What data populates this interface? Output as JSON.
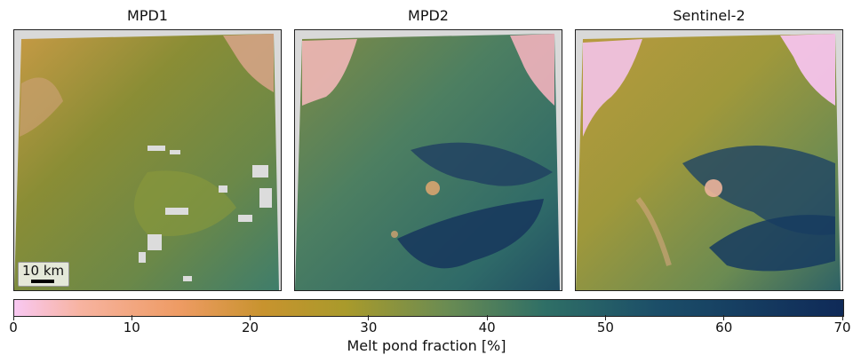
{
  "panels": [
    {
      "title": "MPD1"
    },
    {
      "title": "MPD2"
    },
    {
      "title": "Sentinel-2"
    }
  ],
  "scalebar": {
    "label": "10 km"
  },
  "colorbar": {
    "label": "Melt pond fraction [%]",
    "ticks": [
      "0",
      "10",
      "20",
      "30",
      "40",
      "50",
      "60",
      "70"
    ],
    "range": [
      0,
      70
    ]
  },
  "colors": {
    "low": "#f8c8f2",
    "mid": "#a99a2b",
    "high": "#0f2a58",
    "nodata": "#d9d9d9"
  }
}
